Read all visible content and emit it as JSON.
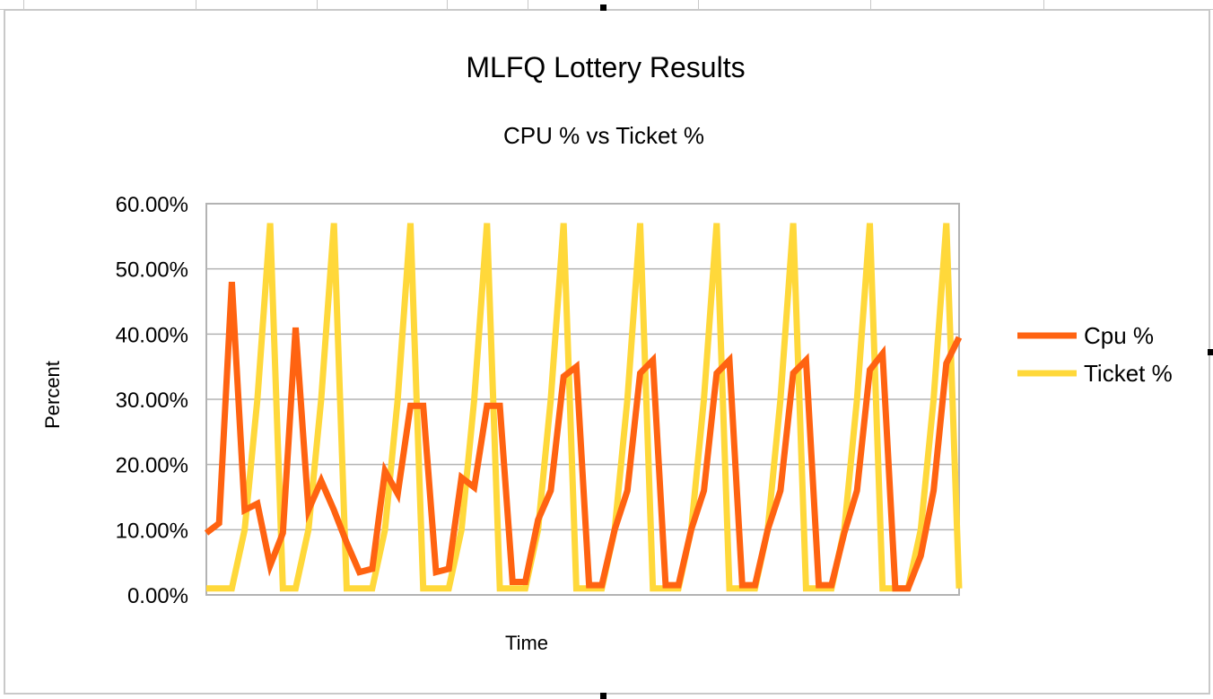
{
  "chart_data": {
    "type": "line",
    "title": "MLFQ Lottery Results",
    "subtitle": "CPU % vs Ticket %",
    "xlabel": "Time",
    "ylabel": "Percent",
    "ylim": [
      0,
      0.6
    ],
    "yticks": [
      "0.00%",
      "10.00%",
      "20.00%",
      "30.00%",
      "40.00%",
      "50.00%",
      "60.00%"
    ],
    "grid": true,
    "legend_position": "right",
    "x": [
      1,
      2,
      3,
      4,
      5,
      6,
      7,
      8,
      9,
      10,
      11,
      12,
      13,
      14,
      15,
      16,
      17,
      18,
      19,
      20,
      21,
      22,
      23,
      24,
      25,
      26,
      27,
      28,
      29,
      30,
      31,
      32,
      33,
      34,
      35,
      36,
      37,
      38,
      39,
      40,
      41,
      42,
      43,
      44,
      45,
      46,
      47,
      48,
      49,
      50,
      51,
      52,
      53,
      54,
      55,
      56,
      57,
      58,
      59,
      60
    ],
    "series": [
      {
        "name": "Cpu %",
        "color": "#ff6311",
        "values": [
          0.095,
          0.11,
          0.48,
          0.13,
          0.14,
          0.045,
          0.095,
          0.41,
          0.13,
          0.175,
          0.13,
          0.08,
          0.035,
          0.04,
          0.19,
          0.155,
          0.29,
          0.29,
          0.035,
          0.04,
          0.18,
          0.165,
          0.29,
          0.29,
          0.02,
          0.02,
          0.115,
          0.16,
          0.335,
          0.35,
          0.015,
          0.015,
          0.1,
          0.16,
          0.34,
          0.36,
          0.015,
          0.015,
          0.1,
          0.16,
          0.34,
          0.36,
          0.015,
          0.015,
          0.1,
          0.16,
          0.34,
          0.36,
          0.015,
          0.015,
          0.095,
          0.16,
          0.345,
          0.37,
          0.01,
          0.01,
          0.06,
          0.16,
          0.355,
          0.395
        ]
      },
      {
        "name": "Ticket %",
        "color": "#ffd83a",
        "values": [
          0.01,
          0.01,
          0.01,
          0.1,
          0.3,
          0.57,
          0.01,
          0.01,
          0.1,
          0.3,
          0.57,
          0.01,
          0.01,
          0.01,
          0.1,
          0.3,
          0.57,
          0.01,
          0.01,
          0.01,
          0.1,
          0.3,
          0.57,
          0.01,
          0.01,
          0.01,
          0.1,
          0.3,
          0.57,
          0.01,
          0.01,
          0.01,
          0.1,
          0.3,
          0.57,
          0.01,
          0.01,
          0.01,
          0.1,
          0.3,
          0.57,
          0.01,
          0.01,
          0.01,
          0.1,
          0.3,
          0.57,
          0.01,
          0.01,
          0.01,
          0.1,
          0.3,
          0.57,
          0.01,
          0.01,
          0.01,
          0.1,
          0.3,
          0.57,
          0.01
        ]
      }
    ],
    "colors": {
      "grid": "#b3b3b3",
      "plot_border": "#b3b3b3",
      "frame": "#c9c9c9"
    }
  }
}
